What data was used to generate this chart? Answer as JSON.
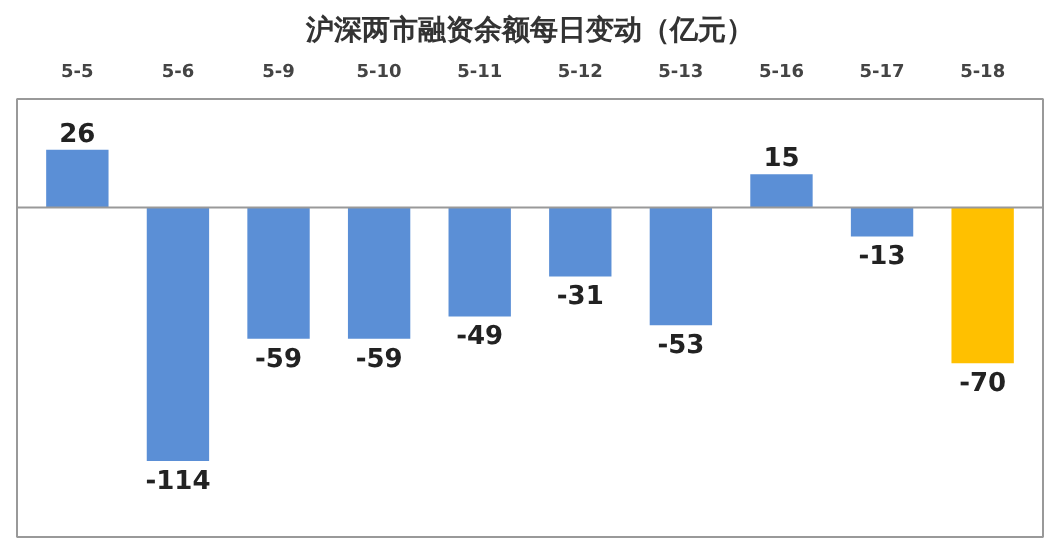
{
  "chart_data": {
    "type": "bar",
    "title": "沪深两市融资余额每日变动（亿元）",
    "categories": [
      "5-5",
      "5-6",
      "5-9",
      "5-10",
      "5-11",
      "5-12",
      "5-13",
      "5-16",
      "5-17",
      "5-18"
    ],
    "values": [
      26,
      -114,
      -59,
      -59,
      -49,
      -31,
      -53,
      15,
      -13,
      -70
    ],
    "colors": [
      "#5b8fd6",
      "#5b8fd6",
      "#5b8fd6",
      "#5b8fd6",
      "#5b8fd6",
      "#5b8fd6",
      "#5b8fd6",
      "#5b8fd6",
      "#5b8fd6",
      "#ffc000"
    ],
    "data_labels": true,
    "grid": false
  }
}
